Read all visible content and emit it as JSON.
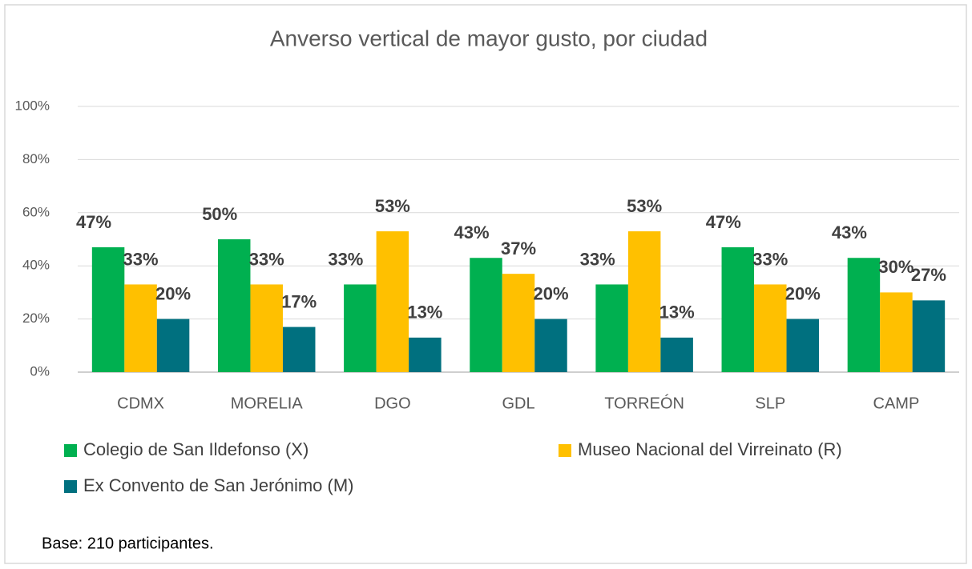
{
  "chart_data": {
    "type": "bar",
    "title": "Anverso vertical de mayor gusto, por ciudad",
    "note": "Base: 210 participantes.",
    "categories": [
      "CDMX",
      "MORELIA",
      "DGO",
      "GDL",
      "TORREÓN",
      "SLP",
      "CAMP"
    ],
    "series": [
      {
        "name": "Colegio de San Ildefonso (X)",
        "color": "#00b050",
        "values": [
          47,
          50,
          33,
          43,
          33,
          47,
          43
        ],
        "value_labels": [
          "47%",
          "50%",
          "33%",
          "43%",
          "33%",
          "47%",
          "43%"
        ]
      },
      {
        "name": "Museo Nacional del Virreinato (R)",
        "color": "#ffc000",
        "values": [
          33,
          33,
          53,
          37,
          53,
          33,
          30
        ],
        "value_labels": [
          "33%",
          "33%",
          "53%",
          "37%",
          "53%",
          "33%",
          "30%"
        ]
      },
      {
        "name": "Ex Convento de San Jerónimo (M)",
        "color": "#00707f",
        "values": [
          20,
          17,
          13,
          20,
          13,
          20,
          27
        ],
        "value_labels": [
          "20%",
          "17%",
          "13%",
          "20%",
          "13%",
          "20%",
          "27%"
        ]
      }
    ],
    "ylim": [
      0,
      100
    ],
    "yticks": [
      {
        "value": 0,
        "label": "0%"
      },
      {
        "value": 20,
        "label": "20%"
      },
      {
        "value": 40,
        "label": "40%"
      },
      {
        "value": 60,
        "label": "60%"
      },
      {
        "value": 80,
        "label": "80%"
      },
      {
        "value": 100,
        "label": "100%"
      }
    ],
    "grid": true,
    "legend": "bottom"
  }
}
